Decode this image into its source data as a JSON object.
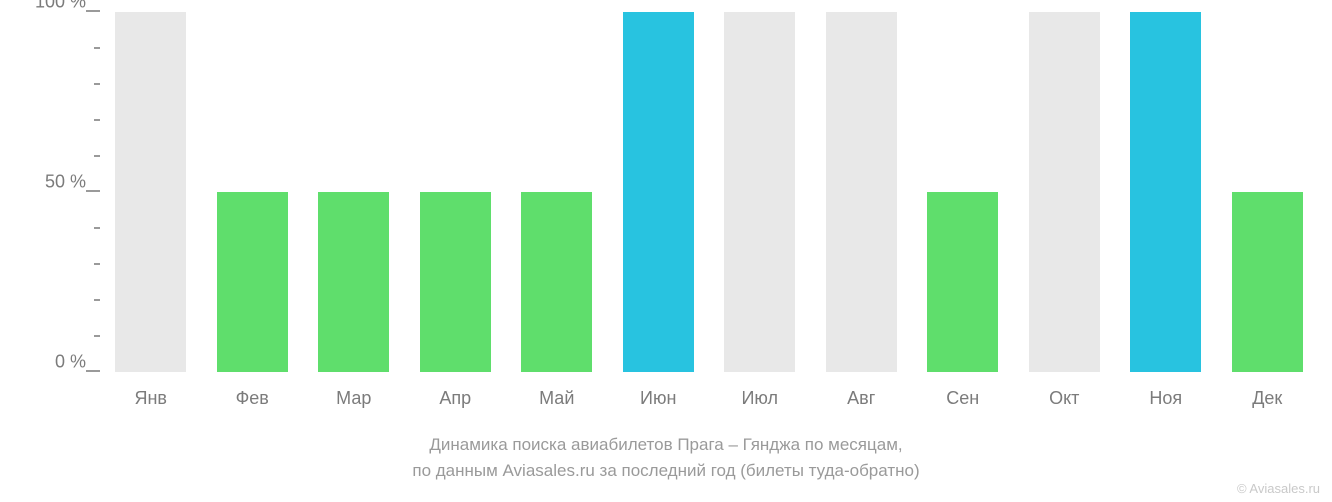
{
  "chart": {
    "type": "bar",
    "background_color": "#ffffff",
    "text_color": "#7b7b7b",
    "tick_color": "#9a9a9a",
    "categories": [
      "Янв",
      "Фев",
      "Мар",
      "Апр",
      "Май",
      "Июн",
      "Июл",
      "Авг",
      "Сен",
      "Окт",
      "Ноя",
      "Дек"
    ],
    "values": [
      0,
      50,
      50,
      50,
      50,
      100,
      0,
      0,
      50,
      0,
      100,
      50
    ],
    "bar_colors": [
      "#e8e8e8",
      "#5fde6c",
      "#5fde6c",
      "#5fde6c",
      "#5fde6c",
      "#28c3e0",
      "#e8e8e8",
      "#e8e8e8",
      "#5fde6c",
      "#e8e8e8",
      "#28c3e0",
      "#5fde6c"
    ],
    "empty_bar_color": "#e8e8e8",
    "empty_bar_height_pct": 100,
    "ylim": [
      0,
      100
    ],
    "y_major_ticks": [
      0,
      50,
      100
    ],
    "y_minor_tick_count_between": 4,
    "y_tick_labels": [
      "0 %",
      "50 %",
      "100 %"
    ],
    "bar_width_ratio": 0.7,
    "axis_label_fontsize": 18,
    "caption_fontsize": 17,
    "attribution_fontsize": 13
  },
  "caption": {
    "line1": "Динамика поиска авиабилетов Прага – Гянджа по месяцам,",
    "line2": "по данным Aviasales.ru за последний год (билеты туда-обратно)"
  },
  "attribution": "© Aviasales.ru"
}
